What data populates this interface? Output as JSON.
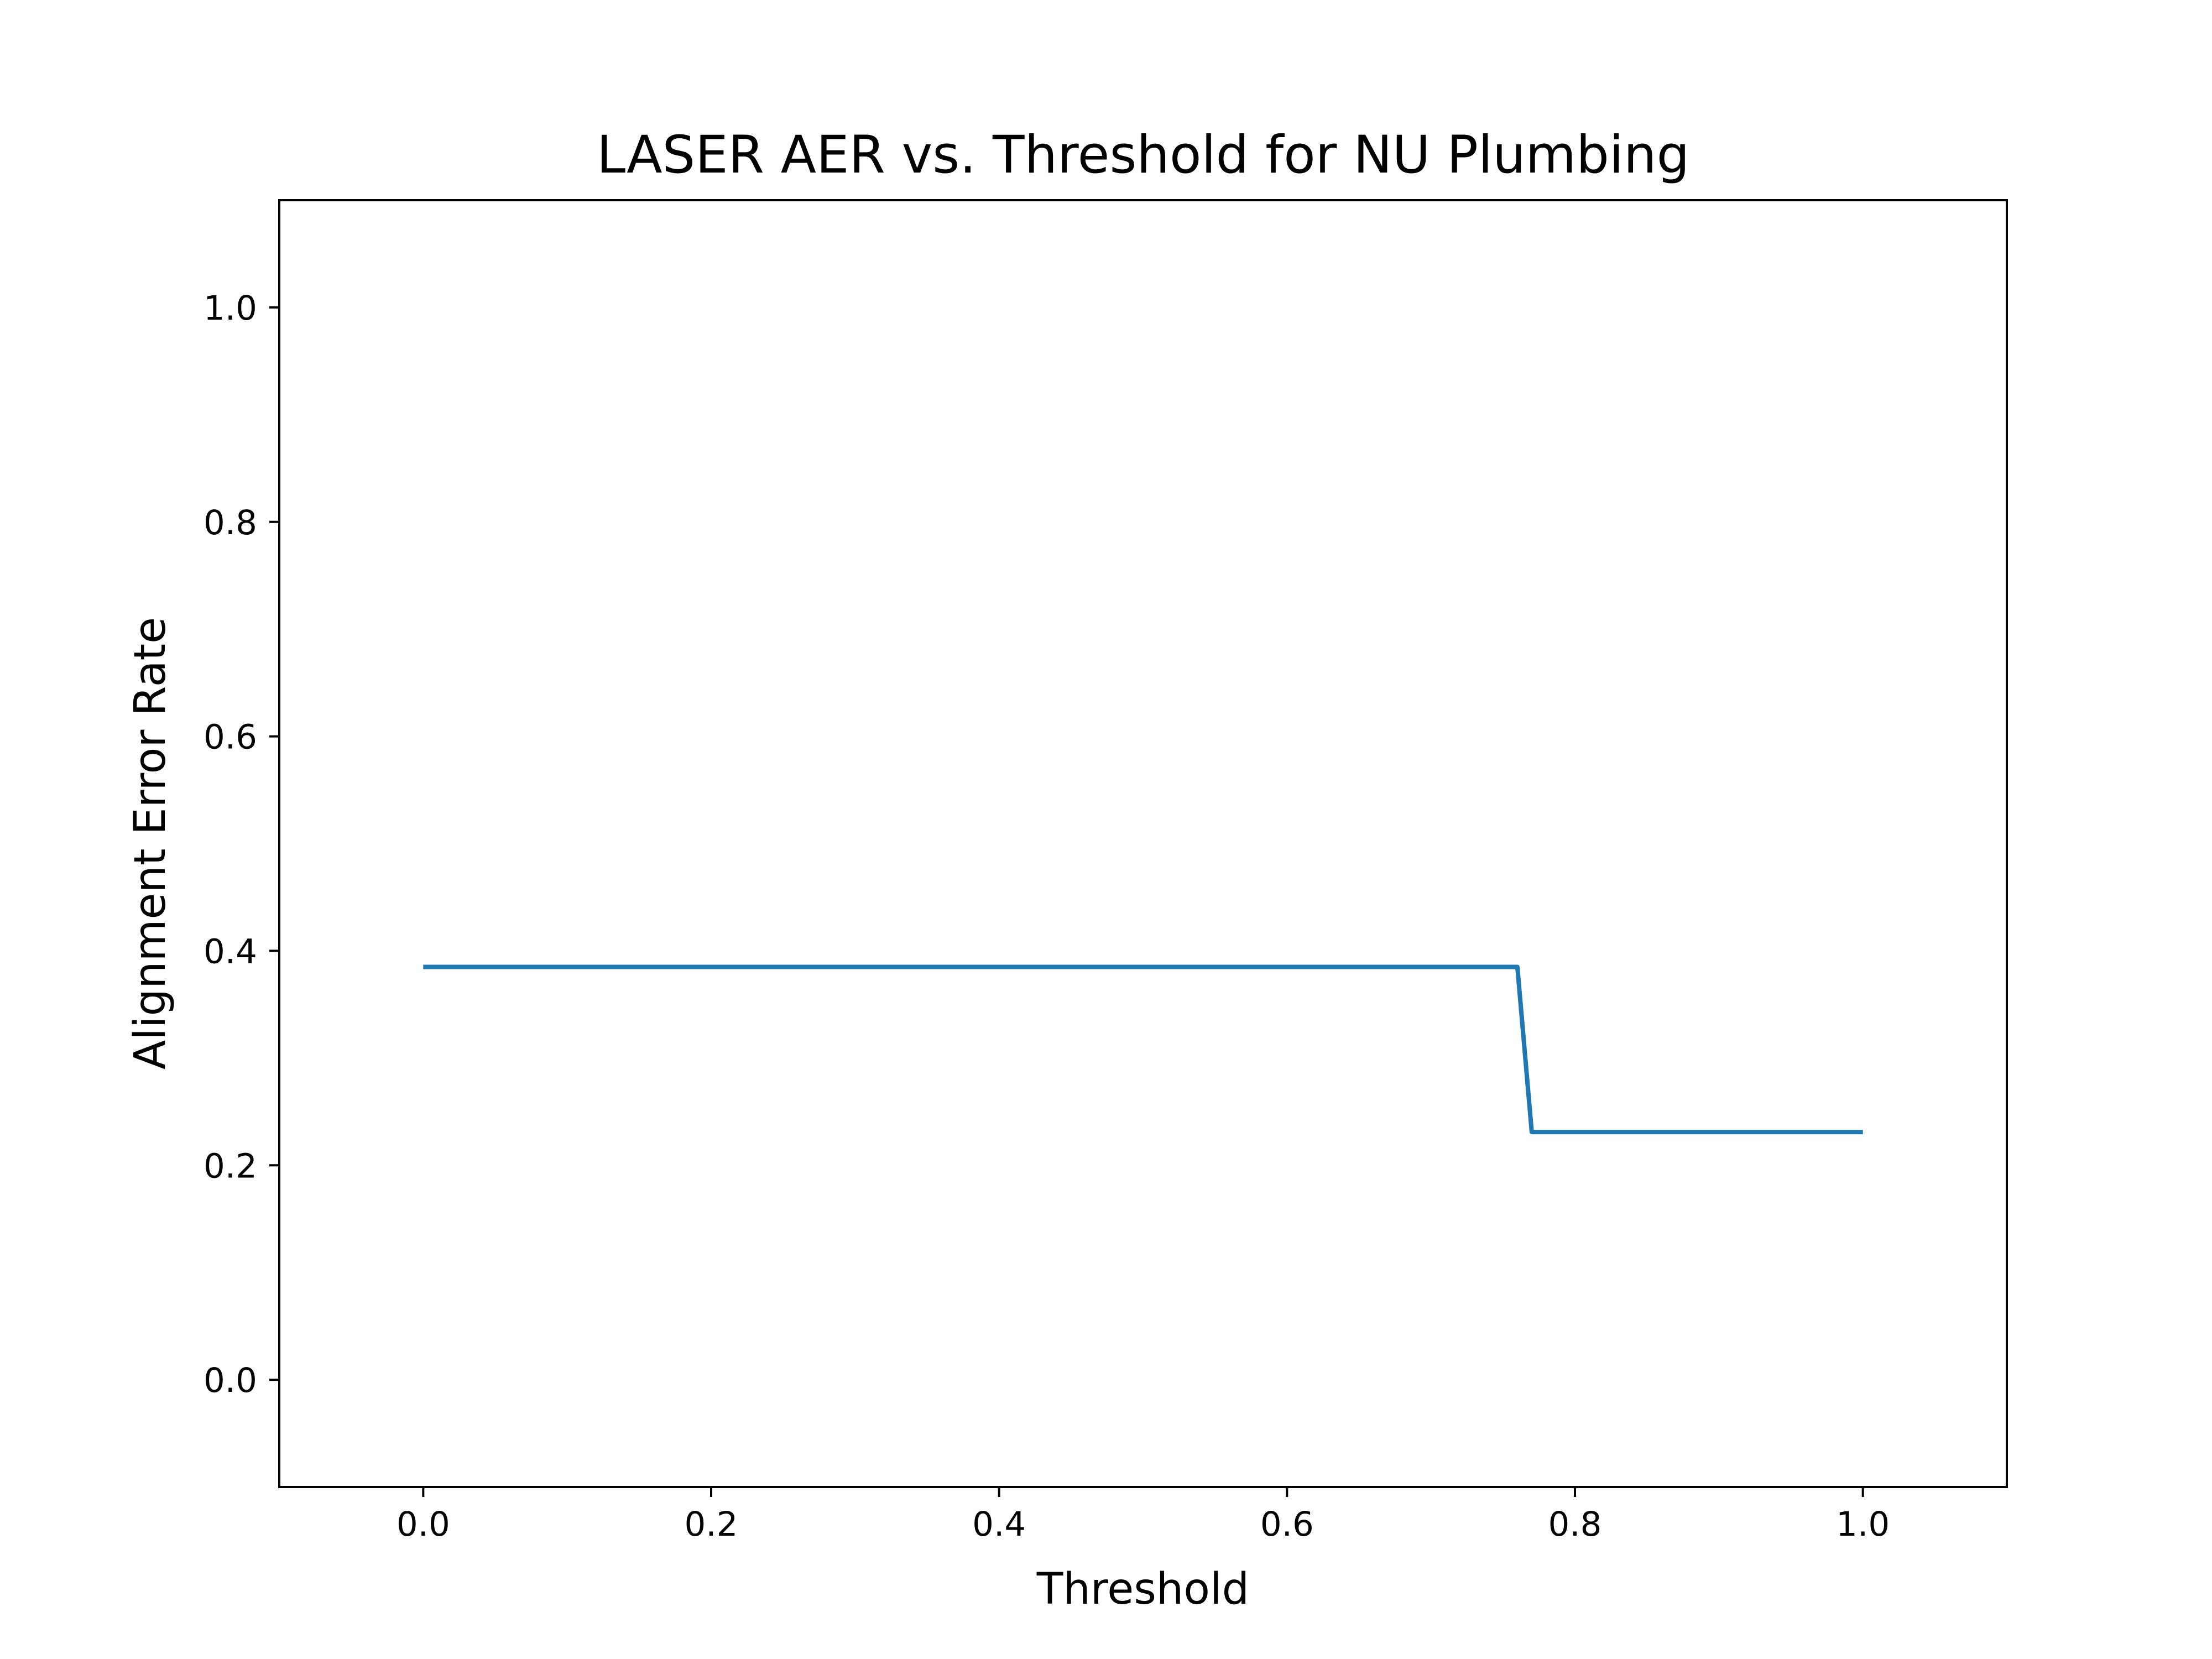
{
  "chart_data": {
    "type": "line",
    "title": "LASER AER vs. Threshold for NU Plumbing",
    "xlabel": "Threshold",
    "ylabel": "Alignment Error Rate",
    "xlim": [
      -0.1,
      1.1
    ],
    "ylim": [
      -0.1,
      1.1
    ],
    "xticks": [
      0.0,
      0.2,
      0.4,
      0.6,
      0.8,
      1.0
    ],
    "xtick_labels": [
      "0.0",
      "0.2",
      "0.4",
      "0.6",
      "0.8",
      "1.0"
    ],
    "yticks": [
      0.0,
      0.2,
      0.4,
      0.6,
      0.8,
      1.0
    ],
    "ytick_labels": [
      "0.0",
      "0.2",
      "0.4",
      "0.6",
      "0.8",
      "1.0"
    ],
    "grid": false,
    "series": [
      {
        "color": "#1f77b4",
        "x": [
          0.0,
          0.76,
          0.77,
          1.0
        ],
        "y": [
          0.385,
          0.385,
          0.231,
          0.231
        ]
      }
    ]
  }
}
